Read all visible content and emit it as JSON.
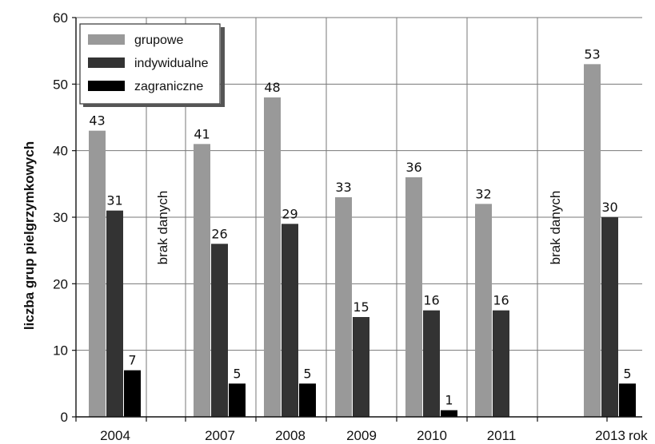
{
  "chart_data": {
    "type": "bar",
    "title": "",
    "ylabel": "liczba grup pielgrzymkowych",
    "xlabel": "rok",
    "ylim": [
      0,
      60
    ],
    "yticks": [
      0,
      10,
      20,
      30,
      40,
      50,
      60
    ],
    "grid": true,
    "legend_position": "top-left",
    "categories": [
      "2004",
      "2007",
      "2008",
      "2009",
      "2010",
      "2011",
      "2013"
    ],
    "series": [
      {
        "name": "grupowe",
        "color": "#999999",
        "values": [
          43,
          41,
          48,
          33,
          36,
          32,
          53
        ]
      },
      {
        "name": "indywidualne",
        "color": "#333333",
        "values": [
          31,
          26,
          29,
          15,
          16,
          16,
          30
        ]
      },
      {
        "name": "zagraniczne",
        "color": "#000000",
        "values": [
          7,
          5,
          5,
          null,
          1,
          null,
          5
        ]
      }
    ],
    "annotations": [
      {
        "text": "brak danych",
        "between": [
          "2004",
          "2007"
        ]
      },
      {
        "text": "brak danych",
        "between": [
          "2011",
          "2013"
        ]
      }
    ]
  }
}
